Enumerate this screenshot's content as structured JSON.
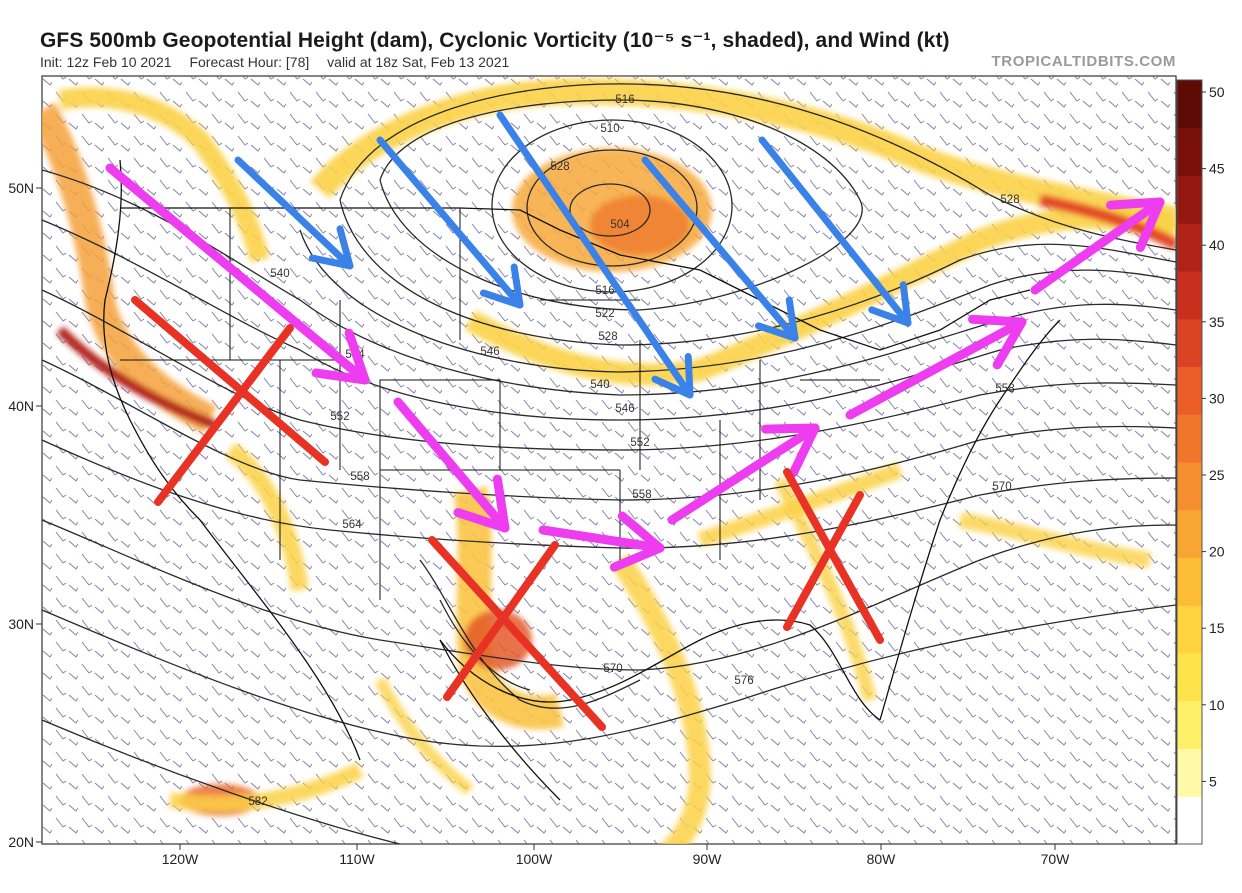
{
  "header": {
    "title": "GFS 500mb Geopotential Height (dam), Cyclonic Vorticity (10⁻⁵ s⁻¹, shaded), and Wind (kt)",
    "init": "Init: 12z Feb 10 2021",
    "forecast_hour": "Forecast Hour: [78]",
    "valid": "valid at 18z Sat, Feb 13 2021",
    "brand": "TROPICALTIDBITS.COM"
  },
  "axes": {
    "lon_labels": [
      "120W",
      "110W",
      "100W",
      "90W",
      "80W",
      "70W"
    ],
    "lat_labels": [
      "50N",
      "40N",
      "30N",
      "20N"
    ]
  },
  "colorbar": {
    "ticks": [
      "50",
      "45",
      "40",
      "35",
      "30",
      "25",
      "20",
      "15",
      "10",
      "5"
    ],
    "colors": [
      "#ffffff",
      "#fff9a8",
      "#fff06a",
      "#ffe34a",
      "#ffd23e",
      "#fcbc36",
      "#f8a532",
      "#f58e2e",
      "#f0762a",
      "#ea5d27",
      "#dc4322",
      "#c8301d",
      "#b02217",
      "#951810",
      "#7a100a",
      "#5e0a05"
    ]
  },
  "contours": {
    "labels": [
      "516",
      "510",
      "504",
      "516",
      "522",
      "528",
      "528",
      "534",
      "540",
      "546",
      "552",
      "552",
      "558",
      "558",
      "564",
      "570",
      "570",
      "576",
      "582",
      "546",
      "540",
      "558",
      "528"
    ]
  },
  "annotations": {
    "magenta_arrow_color": "#ee3cf0",
    "blue_arrow_color": "#3a82e8",
    "red_x_color": "#e83224"
  }
}
